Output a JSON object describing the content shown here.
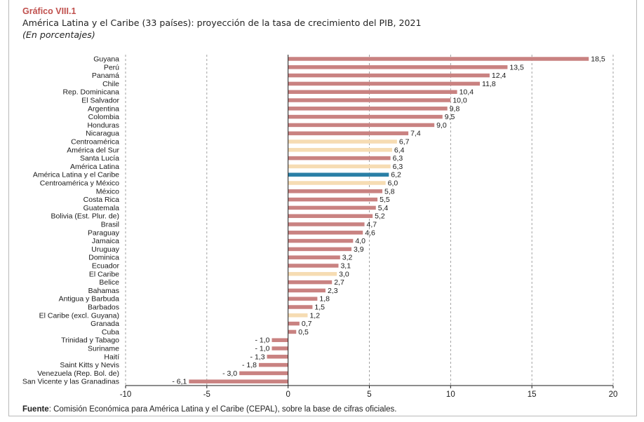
{
  "header": {
    "title": "Gráfico VIII.1",
    "subtitle": "América Latina y el Caribe (33 países): proyección de la tasa de crecimiento del PIB, 2021",
    "units": "(En porcentajes)"
  },
  "footer": {
    "source_label": "Fuente",
    "source_text": ": Comisión Económica para América Latina y el Caribe (CEPAL), sobre la base de cifras oficiales."
  },
  "colors": {
    "country": "#c98281",
    "aggregate": "#f6dcb3",
    "highlight": "#2a7fa6",
    "gridline": "#8a8a8a"
  },
  "chart_data": {
    "type": "bar",
    "orientation": "horizontal",
    "title": "Gráfico VIII.1",
    "subtitle": "América Latina y el Caribe (33 países): proyección de la tasa de crecimiento del PIB, 2021",
    "xlabel": "",
    "ylabel": "",
    "xlim": [
      -10,
      20
    ],
    "xticks": [
      -10,
      -5,
      0,
      5,
      10,
      15,
      20
    ],
    "grid": "vertical dashed",
    "legend": "none",
    "categories": [
      "Guyana",
      "Perú",
      "Panamá",
      "Chile",
      "Rep. Dominicana",
      "El Salvador",
      "Argentina",
      "Colombia",
      "Honduras",
      "Nicaragua",
      "Centroamérica",
      "América del Sur",
      "Santa Lucía",
      "América Latina",
      "América Latina y el Caribe",
      "Centroamérica y México",
      "México",
      "Costa Rica",
      "Guatemala",
      "Bolivia (Est. Plur. de)",
      "Brasil",
      "Paraguay",
      "Jamaica",
      "Uruguay",
      "Dominica",
      "Ecuador",
      "El Caribe",
      "Belice",
      "Bahamas",
      "Antigua y Barbuda",
      "Barbados",
      "El Caribe (excl. Guyana)",
      "Granada",
      "Cuba",
      "Trinidad y Tabago",
      "Suriname",
      "Haití",
      "Saint Kitts y Nevis",
      "Venezuela (Rep. Bol. de)",
      "San Vicente y las Granadinas"
    ],
    "values": [
      18.5,
      13.5,
      12.4,
      11.8,
      10.4,
      10.0,
      9.8,
      9.5,
      9.0,
      7.4,
      6.7,
      6.4,
      6.3,
      6.3,
      6.2,
      6.0,
      5.8,
      5.5,
      5.4,
      5.2,
      4.7,
      4.6,
      4.0,
      3.9,
      3.2,
      3.1,
      3.0,
      2.7,
      2.3,
      1.8,
      1.5,
      1.2,
      0.7,
      0.5,
      -1.0,
      -1.0,
      -1.3,
      -1.8,
      -3.0,
      -6.1
    ],
    "labels": [
      "18,5",
      "13,5",
      "12,4",
      "11,8",
      "10,4",
      "10,0",
      "9,8",
      "9,5",
      "9,0",
      "7,4",
      "6,7",
      "6,4",
      "6,3",
      "6,3",
      "6,2",
      "6,0",
      "5,8",
      "5,5",
      "5,4",
      "5,2",
      "4,7",
      "4,6",
      "4,0",
      "3,9",
      "3,2",
      "3,1",
      "3,0",
      "2,7",
      "2,3",
      "1,8",
      "1,5",
      "1,2",
      "0,7",
      "0,5",
      "- 1,0",
      "- 1,0",
      "- 1,3",
      "- 1,8",
      "- 3,0",
      "- 6,1"
    ],
    "bar_kind": [
      "country",
      "country",
      "country",
      "country",
      "country",
      "country",
      "country",
      "country",
      "country",
      "country",
      "aggregate",
      "aggregate",
      "country",
      "aggregate",
      "highlight",
      "aggregate",
      "country",
      "country",
      "country",
      "country",
      "country",
      "country",
      "country",
      "country",
      "country",
      "country",
      "aggregate",
      "country",
      "country",
      "country",
      "country",
      "aggregate",
      "country",
      "country",
      "country",
      "country",
      "country",
      "country",
      "country",
      "country"
    ]
  }
}
